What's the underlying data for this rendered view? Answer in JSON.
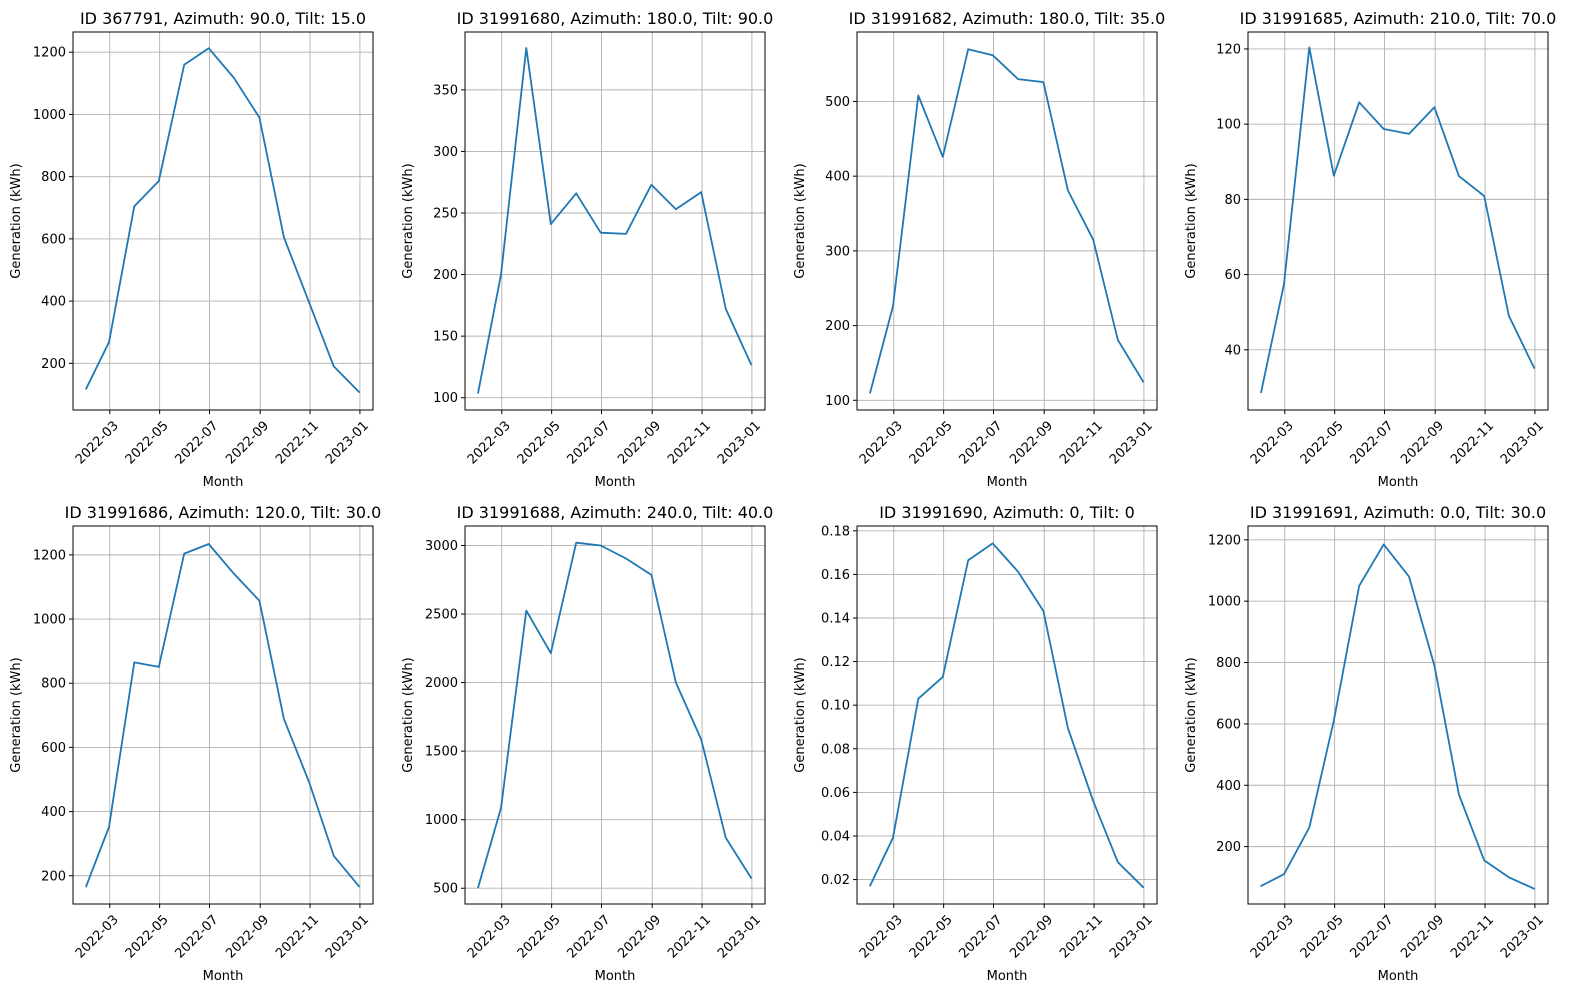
{
  "colors": {
    "series": "#1f77b4",
    "grid": "#b0b0b0",
    "background": "#ffffff"
  },
  "chart_data": [
    {
      "type": "line",
      "title": "ID 367791, Azimuth: 90.0, Tilt: 15.0",
      "xlabel": "Month",
      "ylabel": "Generation (kWh)",
      "grid": true,
      "x": [
        "2022-01-31",
        "2022-02-28",
        "2022-03-31",
        "2022-04-30",
        "2022-05-31",
        "2022-06-30",
        "2022-07-31",
        "2022-08-31",
        "2022-09-30",
        "2022-10-31",
        "2022-11-30",
        "2022-12-31"
      ],
      "xticks": [
        "2022-03",
        "2022-05",
        "2022-07",
        "2022-09",
        "2022-11",
        "2023-01"
      ],
      "yticks": [
        200,
        400,
        600,
        800,
        1000,
        1200
      ],
      "ylim": [
        50,
        1265
      ],
      "series": [
        {
          "values": [
            118,
            268,
            705,
            786,
            1160,
            1213,
            1117,
            990,
            605,
            395,
            190,
            108
          ]
        }
      ]
    },
    {
      "type": "line",
      "title": "ID 31991680, Azimuth: 180.0, Tilt: 90.0",
      "xlabel": "Month",
      "ylabel": "Generation (kWh)",
      "grid": true,
      "x": [
        "2022-01-31",
        "2022-02-28",
        "2022-03-31",
        "2022-04-30",
        "2022-05-31",
        "2022-06-30",
        "2022-07-31",
        "2022-08-31",
        "2022-09-30",
        "2022-10-31",
        "2022-11-30",
        "2022-12-31"
      ],
      "xticks": [
        "2022-03",
        "2022-05",
        "2022-07",
        "2022-09",
        "2022-11",
        "2023-01"
      ],
      "yticks": [
        100,
        150,
        200,
        250,
        300,
        350
      ],
      "ylim": [
        90,
        397
      ],
      "series": [
        {
          "values": [
            104,
            200,
            384,
            241,
            266,
            234,
            233,
            273,
            253,
            267,
            172,
            127
          ]
        }
      ]
    },
    {
      "type": "line",
      "title": "ID 31991682, Azimuth: 180.0, Tilt: 35.0",
      "xlabel": "Month",
      "ylabel": "Generation (kWh)",
      "grid": true,
      "x": [
        "2022-01-31",
        "2022-02-28",
        "2022-03-31",
        "2022-04-30",
        "2022-05-31",
        "2022-06-30",
        "2022-07-31",
        "2022-08-31",
        "2022-09-30",
        "2022-10-31",
        "2022-11-30",
        "2022-12-31"
      ],
      "xticks": [
        "2022-03",
        "2022-05",
        "2022-07",
        "2022-09",
        "2022-11",
        "2023-01"
      ],
      "yticks": [
        100,
        200,
        300,
        400,
        500
      ],
      "ylim": [
        87,
        593
      ],
      "series": [
        {
          "values": [
            110,
            226,
            508,
            426,
            570,
            562,
            530,
            526,
            381,
            315,
            181,
            125
          ]
        }
      ]
    },
    {
      "type": "line",
      "title": "ID 31991685, Azimuth: 210.0, Tilt: 70.0",
      "xlabel": "Month",
      "ylabel": "Generation (kWh)",
      "grid": true,
      "x": [
        "2022-01-31",
        "2022-02-28",
        "2022-03-31",
        "2022-04-30",
        "2022-05-31",
        "2022-06-30",
        "2022-07-31",
        "2022-08-31",
        "2022-09-30",
        "2022-10-31",
        "2022-11-30",
        "2022-12-31"
      ],
      "xticks": [
        "2022-03",
        "2022-05",
        "2022-07",
        "2022-09",
        "2022-11",
        "2023-01"
      ],
      "yticks": [
        40,
        60,
        80,
        100,
        120
      ],
      "ylim": [
        24,
        124.5
      ],
      "series": [
        {
          "values": [
            28.7,
            57.5,
            120.4,
            86.3,
            105.8,
            98.7,
            97.4,
            104.5,
            86.2,
            80.9,
            49.1,
            35.2
          ]
        }
      ]
    },
    {
      "type": "line",
      "title": "ID 31991686, Azimuth: 120.0, Tilt: 30.0",
      "xlabel": "Month",
      "ylabel": "Generation (kWh)",
      "grid": true,
      "x": [
        "2022-01-31",
        "2022-02-28",
        "2022-03-31",
        "2022-04-30",
        "2022-05-31",
        "2022-06-30",
        "2022-07-31",
        "2022-08-31",
        "2022-09-30",
        "2022-10-31",
        "2022-11-30",
        "2022-12-31"
      ],
      "xticks": [
        "2022-03",
        "2022-05",
        "2022-07",
        "2022-09",
        "2022-11",
        "2023-01"
      ],
      "yticks": [
        200,
        400,
        600,
        800,
        1000,
        1200
      ],
      "ylim": [
        112,
        1290
      ],
      "series": [
        {
          "values": [
            167,
            352,
            865,
            851,
            1204,
            1234,
            1141,
            1057,
            689,
            491,
            262,
            167
          ]
        }
      ]
    },
    {
      "type": "line",
      "title": "ID 31991688, Azimuth: 240.0, Tilt: 40.0",
      "xlabel": "Month",
      "ylabel": "Generation (kWh)",
      "grid": true,
      "x": [
        "2022-01-31",
        "2022-02-28",
        "2022-03-31",
        "2022-04-30",
        "2022-05-31",
        "2022-06-30",
        "2022-07-31",
        "2022-08-31",
        "2022-09-30",
        "2022-10-31",
        "2022-11-30",
        "2022-12-31"
      ],
      "xticks": [
        "2022-03",
        "2022-05",
        "2022-07",
        "2022-09",
        "2022-11",
        "2023-01"
      ],
      "yticks": [
        500,
        1000,
        1500,
        2000,
        2500,
        3000
      ],
      "ylim": [
        385,
        3142
      ],
      "series": [
        {
          "values": [
            505,
            1085,
            2525,
            2215,
            3020,
            3000,
            2905,
            2785,
            2000,
            1585,
            868,
            575
          ]
        }
      ]
    },
    {
      "type": "line",
      "title": "ID 31991690, Azimuth: 0, Tilt: 0",
      "xlabel": "Month",
      "ylabel": "Generation (kWh)",
      "grid": true,
      "x": [
        "2022-01-31",
        "2022-02-28",
        "2022-03-31",
        "2022-04-30",
        "2022-05-31",
        "2022-06-30",
        "2022-07-31",
        "2022-08-31",
        "2022-09-30",
        "2022-10-31",
        "2022-11-30",
        "2022-12-31"
      ],
      "xticks": [
        "2022-03",
        "2022-05",
        "2022-07",
        "2022-09",
        "2022-11",
        "2023-01"
      ],
      "yticks": [
        0.02,
        0.04,
        0.06,
        0.08,
        0.1,
        0.12,
        0.14,
        0.16,
        0.18
      ],
      "ytick_labels": [
        "0.02",
        "0.04",
        "0.06",
        "0.08",
        "0.10",
        "0.12",
        "0.14",
        "0.16",
        "0.18"
      ],
      "ylim": [
        0.0088,
        0.1822
      ],
      "series": [
        {
          "values": [
            0.0172,
            0.0392,
            0.103,
            0.113,
            0.1665,
            0.1742,
            0.1613,
            0.1432,
            0.0895,
            0.056,
            0.028,
            0.0165
          ]
        }
      ]
    },
    {
      "type": "line",
      "title": "ID 31991691, Azimuth: 0.0, Tilt: 30.0",
      "xlabel": "Month",
      "ylabel": "Generation (kWh)",
      "grid": true,
      "x": [
        "2022-01-31",
        "2022-02-28",
        "2022-03-31",
        "2022-04-30",
        "2022-05-31",
        "2022-06-30",
        "2022-07-31",
        "2022-08-31",
        "2022-09-30",
        "2022-10-31",
        "2022-11-30",
        "2022-12-31"
      ],
      "xticks": [
        "2022-03",
        "2022-05",
        "2022-07",
        "2022-09",
        "2022-11",
        "2023-01"
      ],
      "yticks": [
        200,
        400,
        600,
        800,
        1000,
        1200
      ],
      "ylim": [
        13,
        1245
      ],
      "series": [
        {
          "values": [
            72,
            110,
            262,
            610,
            1050,
            1185,
            1080,
            790,
            370,
            155,
            100,
            63
          ]
        }
      ]
    }
  ]
}
